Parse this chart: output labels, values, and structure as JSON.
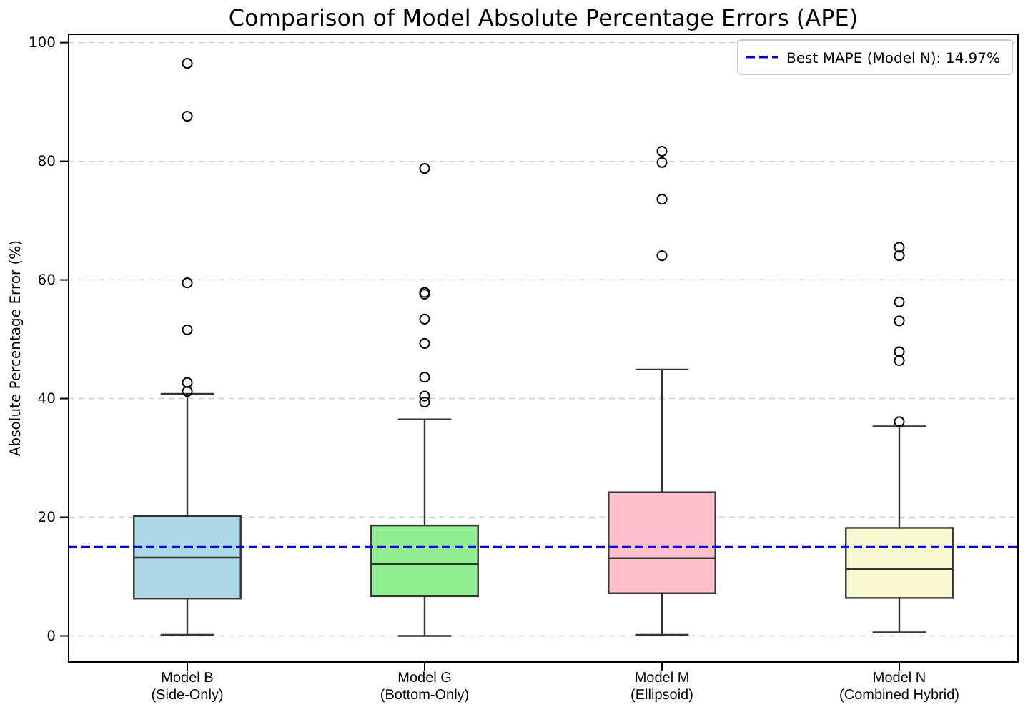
{
  "chart_data": {
    "type": "box",
    "title": "Comparison of Model Absolute Percentage Errors (APE)",
    "ylabel": "Absolute Percentage Error (%)",
    "categories": [
      "Model B\n(Side-Only)",
      "Model G\n(Bottom-Only)",
      "Model M\n(Ellipsoid)",
      "Model N\n(Combined Hybrid)"
    ],
    "colors": [
      "#add8e6",
      "#90ee90",
      "#ffc0cb",
      "#fafad2"
    ],
    "boxes": [
      {
        "low": 0.2,
        "q1": 6.3,
        "median": 13.2,
        "q3": 20.2,
        "high": 40.8,
        "outliers": [
          96.5,
          87.6,
          59.5,
          51.6,
          42.7,
          41.2
        ]
      },
      {
        "low": 0,
        "q1": 6.7,
        "median": 12.1,
        "q3": 18.6,
        "high": 36.5,
        "outliers": [
          78.8,
          57.9,
          57.6,
          53.4,
          49.3,
          43.6,
          40.4,
          39.4
        ]
      },
      {
        "low": 0.2,
        "q1": 7.2,
        "median": 13.1,
        "q3": 24.2,
        "high": 44.9,
        "outliers": [
          81.7,
          79.8,
          73.6,
          64.1
        ]
      },
      {
        "low": 0.6,
        "q1": 6.4,
        "median": 11.3,
        "q3": 18.2,
        "high": 35.3,
        "outliers": [
          65.5,
          64.1,
          56.3,
          53.1,
          47.9,
          46.4,
          36.1
        ]
      }
    ],
    "ylim": [
      -4.4,
      101.4
    ],
    "yticks": [
      0,
      20,
      40,
      60,
      80,
      100
    ],
    "grid": "y",
    "legend": "top right",
    "ref_lines": [
      {
        "axis": "y",
        "value": 14.97,
        "label": "Best MAPE (Model N): 14.97%",
        "color": "#0000ff",
        "line_style": "dashed"
      }
    ]
  }
}
